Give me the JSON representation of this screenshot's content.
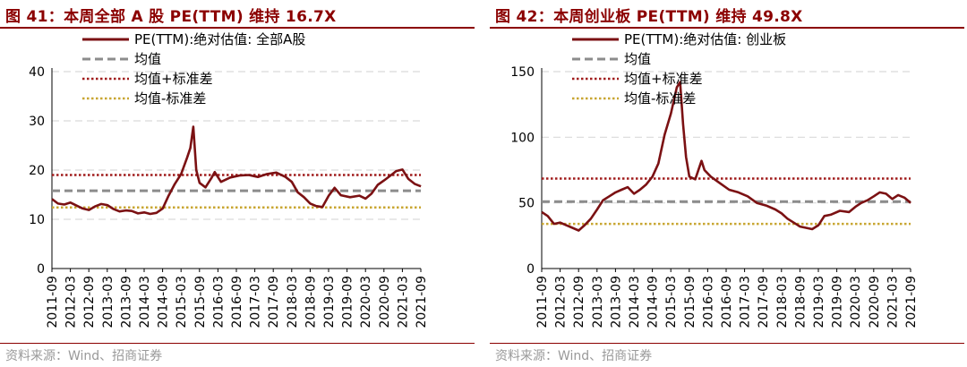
{
  "colors": {
    "title": "#8b0000",
    "series": "#7b1113",
    "mean": "#8c8c8c",
    "upper": "#a01c1c",
    "lower": "#c8a632",
    "grid": "#d9d9d9",
    "source": "#999999"
  },
  "chart_data": [
    {
      "type": "line",
      "title": "图 41：本周全部 A 股 PE(TTM) 维持 16.7X",
      "source": "资料来源：Wind、招商证券",
      "ylim": [
        0,
        40
      ],
      "yticks": [
        0,
        10,
        20,
        30,
        40
      ],
      "xticks": [
        "2011-09",
        "2012-03",
        "2012-09",
        "2013-03",
        "2013-09",
        "2014-03",
        "2014-09",
        "2015-03",
        "2015-09",
        "2016-03",
        "2016-09",
        "2017-03",
        "2017-09",
        "2018-03",
        "2018-09",
        "2019-03",
        "2019-09",
        "2020-03",
        "2020-09",
        "2021-03",
        "2021-09"
      ],
      "grid": "horizontal",
      "legend": [
        "PE(TTM):绝对估值: 全部A股",
        "均值",
        "均值+标准差",
        "均值-标准差"
      ],
      "mean": 15.8,
      "upper": 19.0,
      "lower": 12.4,
      "series": {
        "name": "PE(TTM):绝对估值: 全部A股",
        "x": [
          2011.67,
          2011.83,
          2012.0,
          2012.17,
          2012.33,
          2012.5,
          2012.67,
          2012.83,
          2013.0,
          2013.17,
          2013.33,
          2013.5,
          2013.67,
          2013.83,
          2014.0,
          2014.17,
          2014.33,
          2014.5,
          2014.67,
          2014.83,
          2015.0,
          2015.17,
          2015.33,
          2015.42,
          2015.5,
          2015.58,
          2015.67,
          2015.83,
          2016.0,
          2016.08,
          2016.25,
          2016.5,
          2016.75,
          2017.0,
          2017.25,
          2017.5,
          2017.75,
          2018.0,
          2018.17,
          2018.33,
          2018.5,
          2018.67,
          2018.83,
          2019.0,
          2019.17,
          2019.33,
          2019.5,
          2019.75,
          2020.0,
          2020.17,
          2020.33,
          2020.5,
          2020.67,
          2020.83,
          2021.0,
          2021.17,
          2021.33,
          2021.5,
          2021.67
        ],
        "values": [
          14.1,
          13.2,
          13.0,
          13.4,
          12.8,
          12.2,
          11.9,
          12.6,
          13.1,
          12.9,
          12.1,
          11.6,
          11.8,
          11.7,
          11.2,
          11.4,
          11.1,
          11.3,
          12.2,
          14.8,
          17.2,
          19.2,
          22.5,
          24.5,
          28.8,
          20.0,
          17.4,
          16.5,
          18.5,
          19.6,
          17.6,
          18.5,
          18.9,
          19.0,
          18.6,
          19.2,
          19.5,
          18.6,
          17.6,
          15.5,
          14.5,
          13.2,
          12.7,
          12.5,
          14.8,
          16.4,
          14.9,
          14.5,
          14.8,
          14.2,
          15.2,
          17.0,
          17.9,
          18.8,
          19.8,
          20.1,
          18.2,
          17.2,
          16.7
        ]
      }
    },
    {
      "type": "line",
      "title": "图 42：本周创业板 PE(TTM) 维持 49.8X",
      "source": "资料来源：Wind、招商证券",
      "ylim": [
        0,
        150
      ],
      "yticks": [
        0,
        50,
        100,
        150
      ],
      "xticks": [
        "2011-09",
        "2012-03",
        "2012-09",
        "2013-03",
        "2013-09",
        "2014-03",
        "2014-09",
        "2015-03",
        "2015-09",
        "2016-03",
        "2016-09",
        "2017-03",
        "2017-09",
        "2018-03",
        "2018-09",
        "2019-03",
        "2019-09",
        "2020-03",
        "2020-09",
        "2021-03",
        "2021-09"
      ],
      "grid": "horizontal",
      "legend": [
        "PE(TTM):绝对估值: 创业板",
        "均值",
        "均值+标准差",
        "均值-标准差"
      ],
      "mean": 51.0,
      "upper": 68.5,
      "lower": 34.0,
      "series": {
        "name": "PE(TTM):绝对估值: 创业板",
        "x": [
          2011.67,
          2011.83,
          2012.0,
          2012.17,
          2012.33,
          2012.5,
          2012.67,
          2012.83,
          2013.0,
          2013.17,
          2013.33,
          2013.5,
          2013.67,
          2013.83,
          2014.0,
          2014.17,
          2014.33,
          2014.5,
          2014.67,
          2014.83,
          2015.0,
          2015.17,
          2015.33,
          2015.42,
          2015.5,
          2015.58,
          2015.67,
          2015.83,
          2016.0,
          2016.08,
          2016.25,
          2016.5,
          2016.75,
          2017.0,
          2017.25,
          2017.5,
          2017.75,
          2018.0,
          2018.17,
          2018.33,
          2018.5,
          2018.67,
          2018.83,
          2019.0,
          2019.17,
          2019.33,
          2019.5,
          2019.75,
          2020.0,
          2020.17,
          2020.33,
          2020.5,
          2020.67,
          2020.83,
          2021.0,
          2021.17,
          2021.33,
          2021.5,
          2021.67
        ],
        "values": [
          43,
          40,
          34,
          35,
          33,
          31,
          29,
          33,
          38,
          45,
          52,
          55,
          58,
          60,
          62,
          57,
          60,
          64,
          70,
          80,
          102,
          118,
          138,
          142,
          110,
          85,
          70,
          68,
          82,
          75,
          70,
          65,
          60,
          58,
          55,
          50,
          48,
          45,
          42,
          38,
          35,
          32,
          31,
          30,
          33,
          40,
          41,
          44,
          43,
          47,
          50,
          52,
          55,
          58,
          57,
          53,
          56,
          54,
          50
        ]
      }
    }
  ]
}
